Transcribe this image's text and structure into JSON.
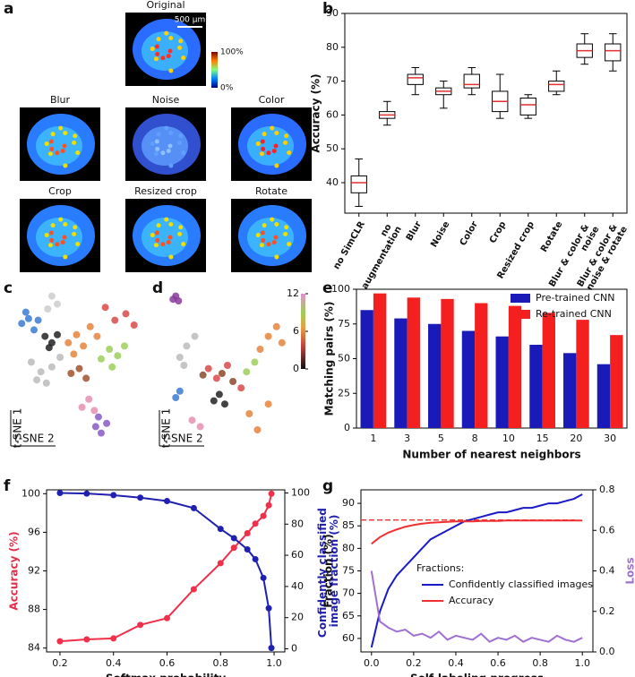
{
  "images": {
    "panel": "a",
    "titles": [
      "Original",
      "Blur",
      "Noise",
      "Color",
      "Crop",
      "Resized crop",
      "Rotate"
    ],
    "scale_bar": "500 µm",
    "colorbar_labels": [
      "100%",
      "0%"
    ]
  },
  "chart_data": [
    {
      "type": "box",
      "panel": "b",
      "ylabel": "Accuracy (%)",
      "categories": [
        "no SimCLR",
        "no augmentation",
        "Blur",
        "Noise",
        "Color",
        "Crop",
        "Resized crop",
        "Rotate",
        "Blur & color & noise",
        "Blur & color & noise & rotate"
      ],
      "min": [
        33,
        57,
        66,
        62,
        66,
        59,
        59,
        66,
        75,
        73
      ],
      "q1": [
        37,
        59,
        69,
        66,
        68,
        61,
        60,
        67,
        77,
        76
      ],
      "median": [
        40,
        60,
        71,
        67,
        69,
        64,
        63,
        69,
        79,
        79
      ],
      "q3": [
        42,
        61,
        72,
        68,
        72,
        67,
        65,
        70,
        81,
        81
      ],
      "max": [
        47,
        64,
        74,
        70,
        74,
        72,
        66,
        73,
        84,
        84
      ],
      "color": "#e03030",
      "ylim": [
        31,
        90
      ],
      "yticks": [
        40,
        50,
        60,
        70,
        80,
        90
      ]
    },
    {
      "type": "scatter",
      "panel": "c",
      "xlabel": "t-SNE 2",
      "ylabel": "t-SNE 1",
      "xlim": [
        0,
        10
      ],
      "ylim": [
        0,
        10
      ],
      "series": [
        {
          "color": "#3a7bd5",
          "x": [
            0.8,
            1.3,
            1.7,
            1.1,
            2.0
          ],
          "y": [
            7.6,
            7.9,
            7.2,
            8.3,
            7.8
          ]
        },
        {
          "color": "#222222",
          "x": [
            2.5,
            3.0,
            3.4,
            2.8
          ],
          "y": [
            6.8,
            6.4,
            6.9,
            6.1
          ]
        },
        {
          "color": "#bbbbbb",
          "x": [
            1.5,
            2.2,
            3.0,
            3.6,
            2.6,
            1.9
          ],
          "y": [
            5.2,
            4.6,
            4.9,
            5.5,
            3.9,
            4.1
          ]
        },
        {
          "color": "#e8843c",
          "x": [
            4.2,
            4.8,
            5.3,
            5.8,
            4.6,
            6.3
          ],
          "y": [
            6.4,
            6.9,
            6.2,
            7.4,
            5.7,
            6.8
          ]
        },
        {
          "color": "#9ccf5a",
          "x": [
            6.6,
            7.2,
            7.8,
            8.3,
            7.4
          ],
          "y": [
            5.4,
            6.0,
            5.6,
            6.2,
            4.9
          ]
        },
        {
          "color": "#d94a4a",
          "x": [
            7.6,
            8.4,
            9.0,
            6.9
          ],
          "y": [
            7.8,
            8.2,
            7.5,
            8.6
          ]
        },
        {
          "color": "#e58fb0",
          "x": [
            5.2,
            5.7,
            6.1
          ],
          "y": [
            2.4,
            2.9,
            2.2
          ]
        },
        {
          "color": "#8a5ac7",
          "x": [
            6.2,
            6.6,
            7.0,
            6.4
          ],
          "y": [
            1.2,
            0.8,
            1.4,
            1.8
          ]
        },
        {
          "color": "#cccccc",
          "x": [
            3.0,
            3.4,
            2.7
          ],
          "y": [
            9.3,
            8.8,
            8.5
          ]
        },
        {
          "color": "#a0522d",
          "x": [
            4.4,
            5.0,
            5.5
          ],
          "y": [
            4.5,
            4.8,
            4.2
          ]
        }
      ]
    },
    {
      "type": "scatter",
      "panel": "d",
      "xlabel": "t-SNE 2",
      "ylabel": "t-SNE 1",
      "xlim": [
        0,
        10
      ],
      "ylim": [
        0,
        10
      ],
      "colorbar": {
        "lim": [
          0,
          12
        ],
        "ticks": [
          0,
          6,
          12
        ]
      },
      "series": [
        {
          "color": "#8a3a9a",
          "x": [
            1.2,
            1.4,
            1.0
          ],
          "y": [
            9.3,
            9.0,
            9.1
          ]
        },
        {
          "color": "#bbbbbb",
          "x": [
            1.5,
            2.0,
            2.6,
            1.8
          ],
          "y": [
            5.5,
            6.2,
            6.8,
            5.0
          ]
        },
        {
          "color": "#3a7bd5",
          "x": [
            1.2,
            1.5
          ],
          "y": [
            3.0,
            3.4
          ]
        },
        {
          "color": "#222222",
          "x": [
            4.0,
            4.4,
            4.8
          ],
          "y": [
            2.8,
            3.2,
            2.6
          ]
        },
        {
          "color": "#d94a4a",
          "x": [
            3.6,
            4.2,
            5.0,
            6.0
          ],
          "y": [
            4.8,
            4.2,
            5.0,
            3.6
          ]
        },
        {
          "color": "#8b4a2b",
          "x": [
            4.6,
            5.4,
            3.2
          ],
          "y": [
            4.5,
            4.0,
            4.4
          ]
        },
        {
          "color": "#e8843c",
          "x": [
            7.4,
            8.0,
            8.6,
            9.0,
            6.6,
            7.2,
            8.0
          ],
          "y": [
            6.0,
            6.8,
            7.4,
            6.4,
            2.0,
            1.0,
            2.6
          ]
        },
        {
          "color": "#9ccf5a",
          "x": [
            7.0,
            6.4
          ],
          "y": [
            5.2,
            4.6
          ]
        },
        {
          "color": "#e58fb0",
          "x": [
            2.4,
            3.0
          ],
          "y": [
            1.6,
            1.2
          ]
        }
      ]
    },
    {
      "type": "bar",
      "panel": "e",
      "xlabel": "Number of nearest neighbors",
      "ylabel": "Matching pairs (%)",
      "categories": [
        "1",
        "3",
        "5",
        "8",
        "10",
        "15",
        "20",
        "30"
      ],
      "series": [
        {
          "name": "Pre-trained CNN",
          "color": "#1a1ab8",
          "values": [
            85,
            79,
            75,
            70,
            66,
            60,
            54,
            46
          ]
        },
        {
          "name": "Re-trained CNN",
          "color": "#f42020",
          "values": [
            97,
            94,
            93,
            90,
            88,
            83,
            78,
            67
          ]
        }
      ],
      "ylim": [
        0,
        100
      ],
      "yticks": [
        0,
        25,
        50,
        75,
        100
      ],
      "legend": "upper right"
    },
    {
      "type": "line",
      "panel": "f",
      "xlabel": "Softmax probability",
      "ylabel": "Accuracy (%)",
      "y2label": "Confidently classified image fraction (%)",
      "ylabel_color": "#e0304a",
      "y2label_color": "#2020b0",
      "markers": true,
      "x": [
        0.2,
        0.3,
        0.4,
        0.5,
        0.6,
        0.7,
        0.8,
        0.85,
        0.9,
        0.93,
        0.96,
        0.98,
        0.99
      ],
      "series": [
        {
          "color": "#f0304a",
          "values": [
            84.7,
            84.9,
            85.0,
            86.4,
            87.1,
            90.1,
            92.8,
            94.4,
            95.9,
            96.9,
            97.7,
            98.8,
            100
          ]
        },
        {
          "color": "#2020b0",
          "axis": "y2",
          "values": [
            100,
            99.6,
            98.6,
            97,
            94.8,
            90.3,
            76.9,
            71,
            63.8,
            57.5,
            45.5,
            26,
            0.5
          ]
        }
      ],
      "xlim": [
        0.15,
        1.04
      ],
      "xticks": [
        0.2,
        0.4,
        0.6,
        0.8,
        {
          "value": 1,
          "label": "1.0"
        }
      ],
      "ylim": [
        83.6,
        100.4
      ],
      "yticks": [
        84,
        88,
        92,
        96,
        100
      ],
      "y2lim": [
        -2,
        102
      ],
      "y2ticks": [
        0,
        20,
        40,
        60,
        80,
        100
      ]
    },
    {
      "type": "line",
      "panel": "g",
      "xlabel": "Self-labeling progress",
      "ylabel": "Fraction (%)",
      "y2label": "Loss",
      "ylabel_color": "#111111",
      "y2label_color": "#a070d0",
      "markers": false,
      "legend_title": "Fractions:",
      "hline": {
        "y": 86.3,
        "color": "#f03030"
      },
      "x": [
        0,
        0.04,
        0.08,
        0.12,
        0.16,
        0.2,
        0.24,
        0.28,
        0.32,
        0.36,
        0.4,
        0.44,
        0.48,
        0.52,
        0.56,
        0.6,
        0.64,
        0.68,
        0.72,
        0.76,
        0.8,
        0.84,
        0.88,
        0.92,
        0.96,
        1
      ],
      "series": [
        {
          "name": "Confidently classified images",
          "color": "#1a1ac8",
          "values": [
            58,
            66,
            71,
            74,
            76,
            78,
            80,
            82,
            83,
            84,
            85,
            86,
            86.5,
            87,
            87.5,
            88,
            88,
            88.5,
            89,
            89,
            89.5,
            90,
            90,
            90.5,
            91,
            92
          ]
        },
        {
          "name": "Accuracy",
          "color": "#f03030",
          "values": [
            81,
            82.5,
            83.5,
            84.2,
            84.8,
            85.2,
            85.5,
            85.7,
            85.8,
            85.9,
            86,
            86,
            86,
            86.1,
            86.1,
            86.1,
            86.2,
            86.2,
            86.2,
            86.2,
            86.2,
            86.2,
            86.2,
            86.2,
            86.2,
            86.2
          ]
        },
        {
          "color": "#a070d0",
          "axis": "y2",
          "values": [
            0.4,
            0.15,
            0.12,
            0.1,
            0.11,
            0.08,
            0.09,
            0.07,
            0.1,
            0.06,
            0.08,
            0.07,
            0.06,
            0.09,
            0.05,
            0.07,
            0.06,
            0.08,
            0.05,
            0.07,
            0.06,
            0.05,
            0.08,
            0.06,
            0.05,
            0.07
          ]
        }
      ],
      "xlim": [
        -0.05,
        1.05
      ],
      "xticks": [
        {
          "value": 0,
          "label": "0.0"
        },
        0.2,
        0.4,
        0.6,
        0.8,
        {
          "value": 1,
          "label": "1.0"
        }
      ],
      "ylim": [
        57,
        93
      ],
      "yticks": [
        60,
        65,
        70,
        75,
        80,
        85,
        90
      ],
      "y2lim": [
        0,
        0.8
      ],
      "y2ticks": [
        {
          "value": 0,
          "label": "0.0"
        },
        0.2,
        0.4,
        0.6,
        0.8
      ],
      "legend": "center"
    }
  ]
}
